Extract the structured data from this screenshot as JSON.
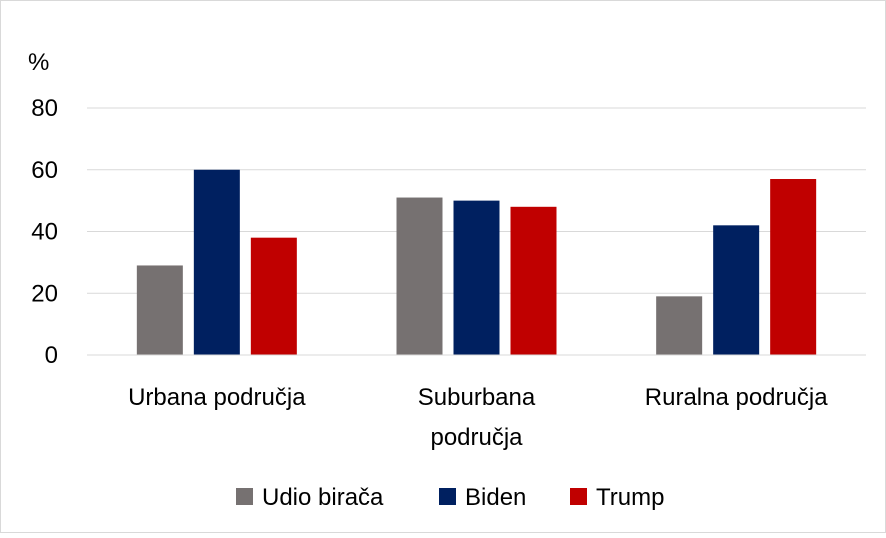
{
  "chart_data": {
    "type": "bar",
    "title": "",
    "y_unit_label": "%",
    "xlabel": "",
    "ylabel": "",
    "ylim": [
      0,
      80
    ],
    "yticks": [
      0,
      20,
      40,
      60,
      80
    ],
    "grid": true,
    "legend_position": "bottom",
    "categories": [
      [
        "Urbana područja"
      ],
      [
        "Suburbana",
        "područja"
      ],
      [
        "Ruralna područja"
      ]
    ],
    "series": [
      {
        "name": "Udio birača",
        "color": "#767171",
        "values": [
          29,
          51,
          19
        ]
      },
      {
        "name": "Biden",
        "color": "#002060",
        "values": [
          60,
          50,
          42
        ]
      },
      {
        "name": "Trump",
        "color": "#C00000",
        "values": [
          38,
          48,
          57
        ]
      }
    ]
  }
}
